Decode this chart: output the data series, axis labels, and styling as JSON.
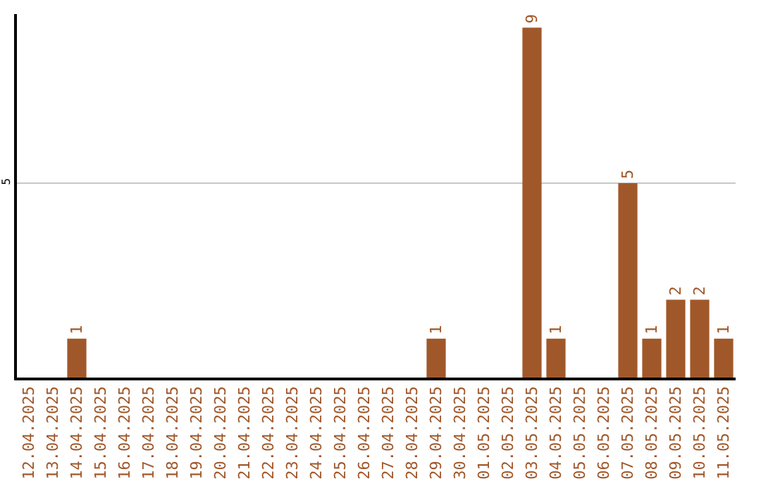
{
  "chart_data": {
    "type": "bar",
    "categories": [
      "12.04.2025",
      "13.04.2025",
      "14.04.2025",
      "15.04.2025",
      "16.04.2025",
      "17.04.2025",
      "18.04.2025",
      "19.04.2025",
      "20.04.2025",
      "21.04.2025",
      "22.04.2025",
      "23.04.2025",
      "24.04.2025",
      "25.04.2025",
      "26.04.2025",
      "27.04.2025",
      "28.04.2025",
      "29.04.2025",
      "30.04.2025",
      "01.05.2025",
      "02.05.2025",
      "03.05.2025",
      "04.05.2025",
      "05.05.2025",
      "06.05.2025",
      "07.05.2025",
      "08.05.2025",
      "09.05.2025",
      "10.05.2025",
      "11.05.2025"
    ],
    "values": [
      0,
      0,
      1,
      0,
      0,
      0,
      0,
      0,
      0,
      0,
      0,
      0,
      0,
      0,
      0,
      0,
      0,
      1,
      0,
      0,
      0,
      9,
      1,
      0,
      0,
      5,
      1,
      2,
      2,
      1
    ],
    "value_labels": [
      null,
      null,
      "1",
      null,
      null,
      null,
      null,
      null,
      null,
      null,
      null,
      null,
      null,
      null,
      null,
      null,
      null,
      "1",
      null,
      null,
      null,
      "9",
      "1",
      null,
      null,
      "5",
      "1",
      "2",
      "2",
      "1"
    ],
    "color": "#a0582a",
    "ylim": [
      0,
      9.35
    ],
    "yticks": [
      5
    ],
    "grid": "y"
  }
}
